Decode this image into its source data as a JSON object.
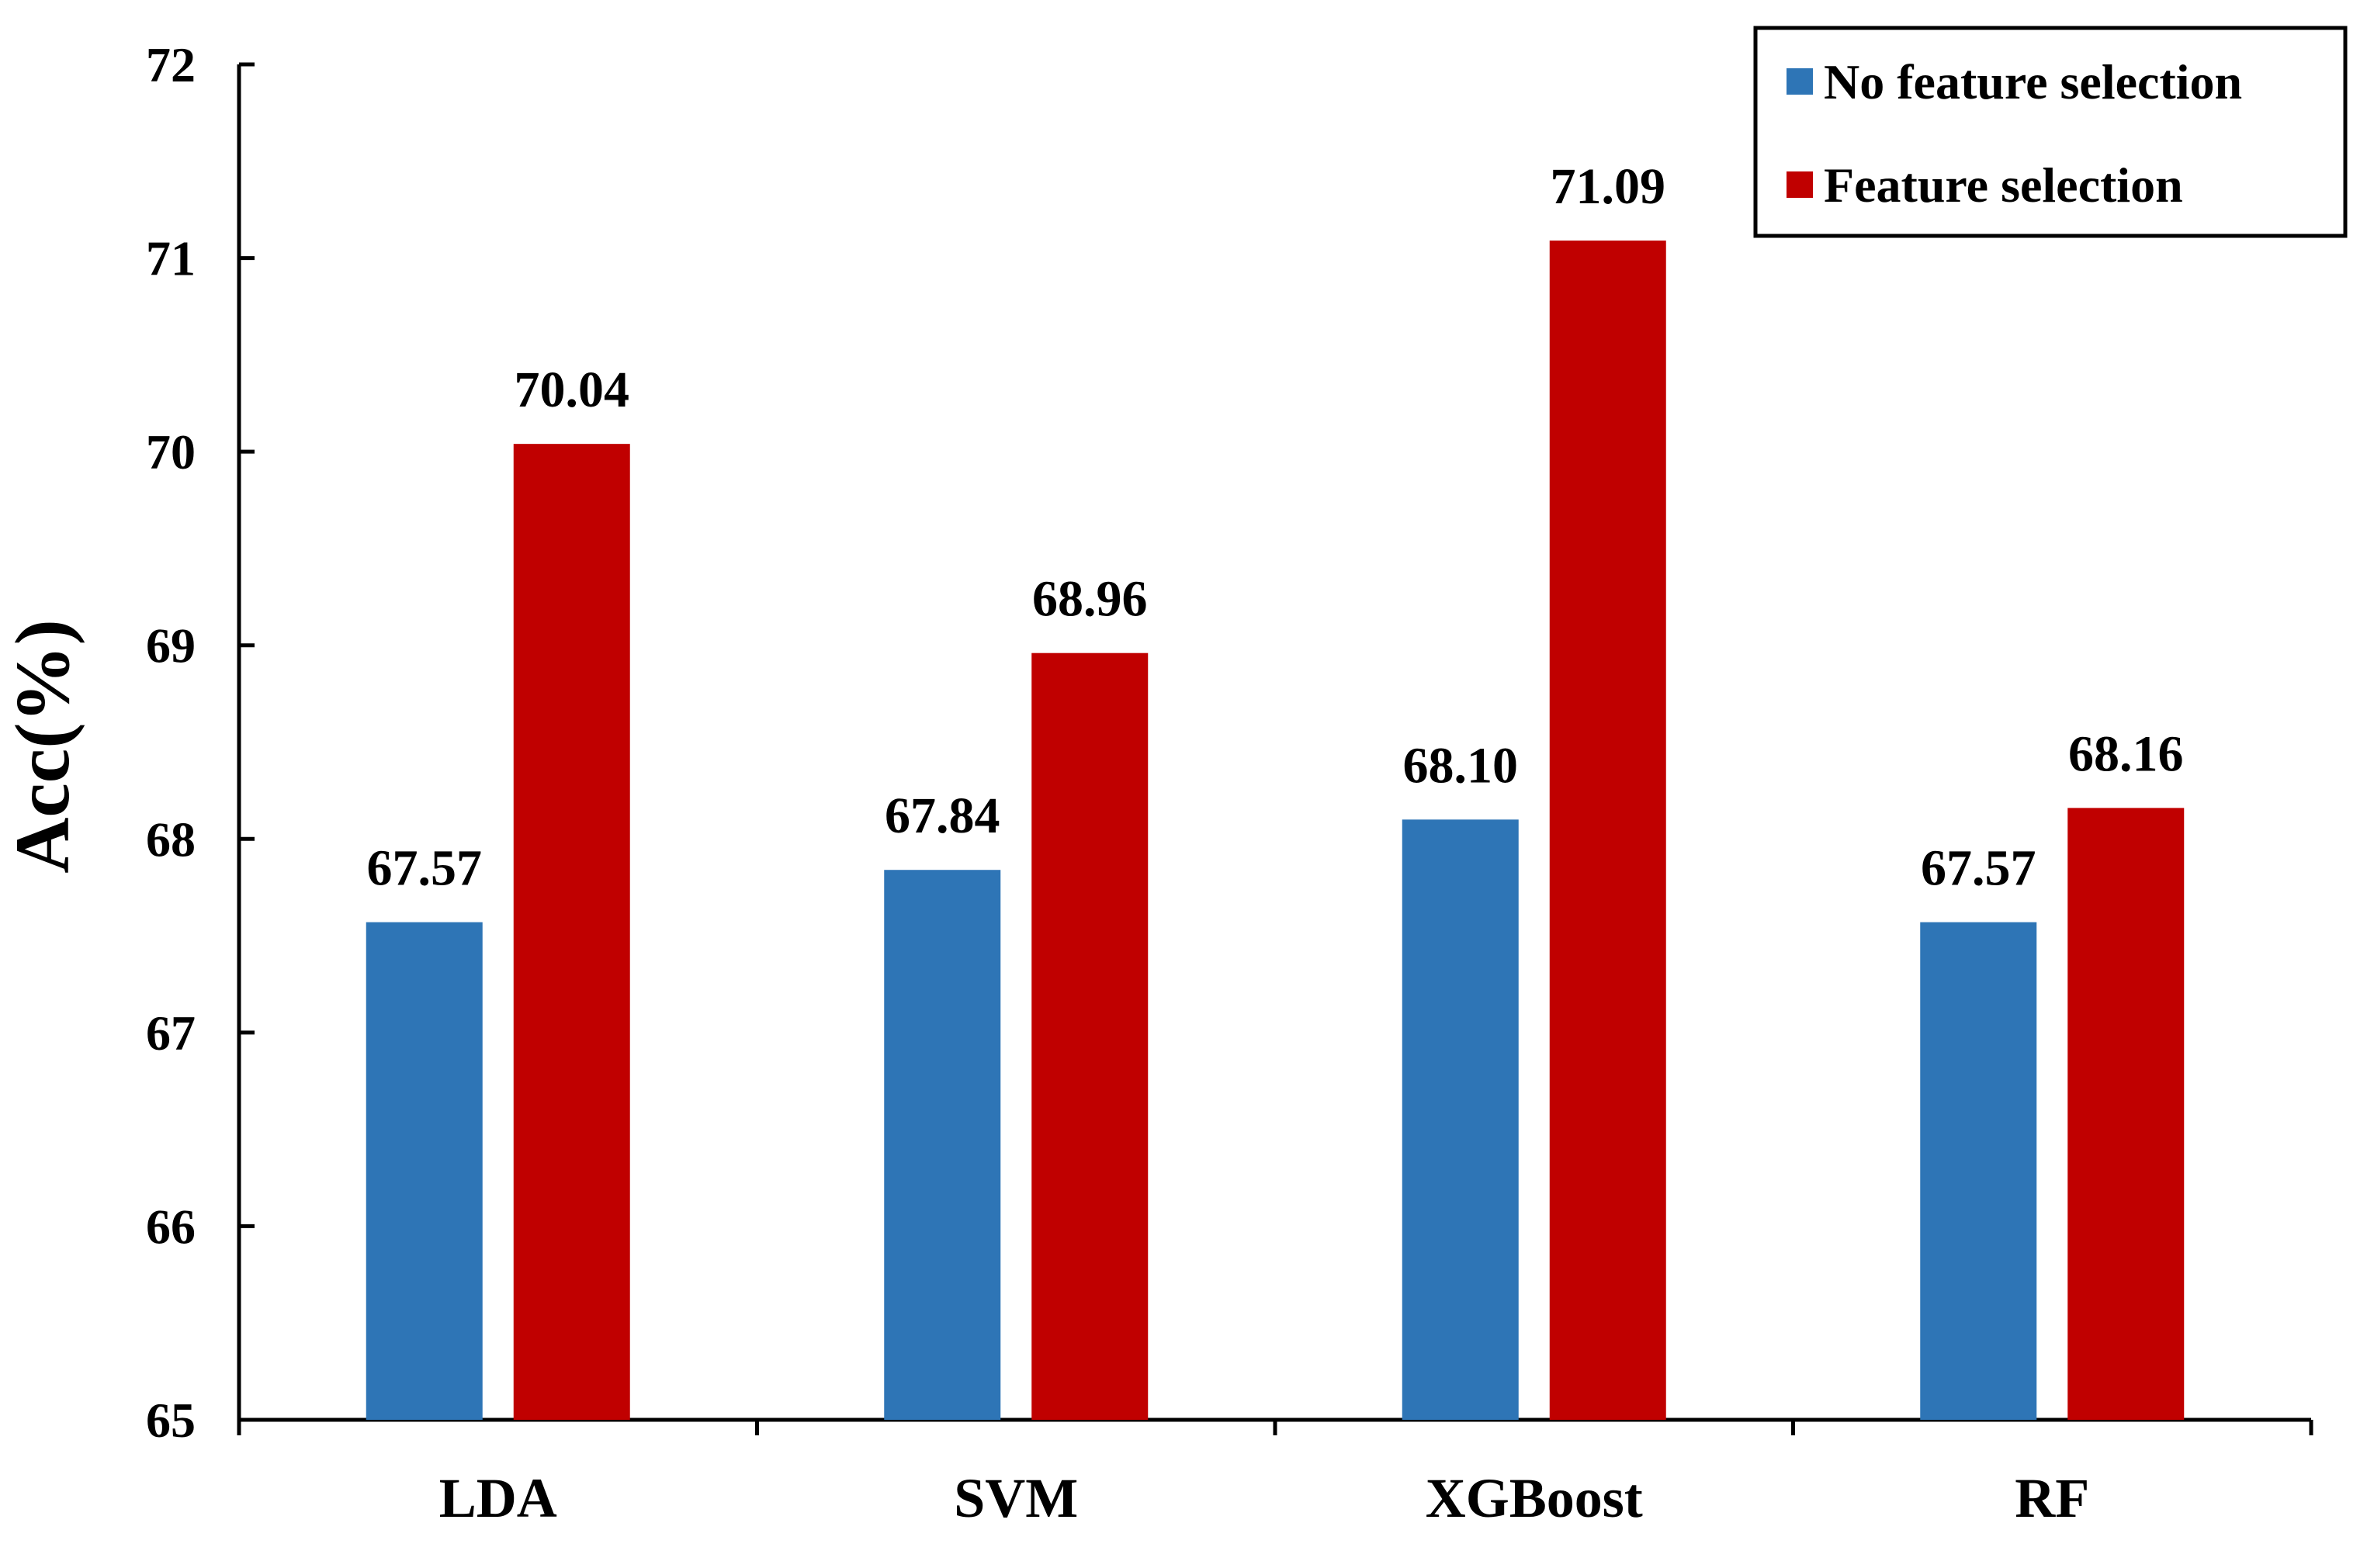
{
  "chart_data": {
    "type": "bar",
    "title": "",
    "xlabel": "",
    "ylabel": "Acc(%)",
    "ylim": [
      65,
      72
    ],
    "yticks": [
      65,
      66,
      67,
      68,
      69,
      70,
      71,
      72
    ],
    "grid": false,
    "legend_position": "top-right",
    "categories": [
      "LDA",
      "SVM",
      "XGBoost",
      "RF"
    ],
    "series": [
      {
        "name": "No feature selection",
        "color": "#2E75B6",
        "values": [
          67.57,
          67.84,
          68.1,
          67.57
        ],
        "labels": [
          "67.57",
          "67.84",
          "68.10",
          "67.57"
        ]
      },
      {
        "name": "Feature selection",
        "color": "#C00000",
        "values": [
          70.04,
          68.96,
          71.09,
          68.16
        ],
        "labels": [
          "70.04",
          "68.96",
          "71.09",
          "68.16"
        ]
      }
    ]
  }
}
